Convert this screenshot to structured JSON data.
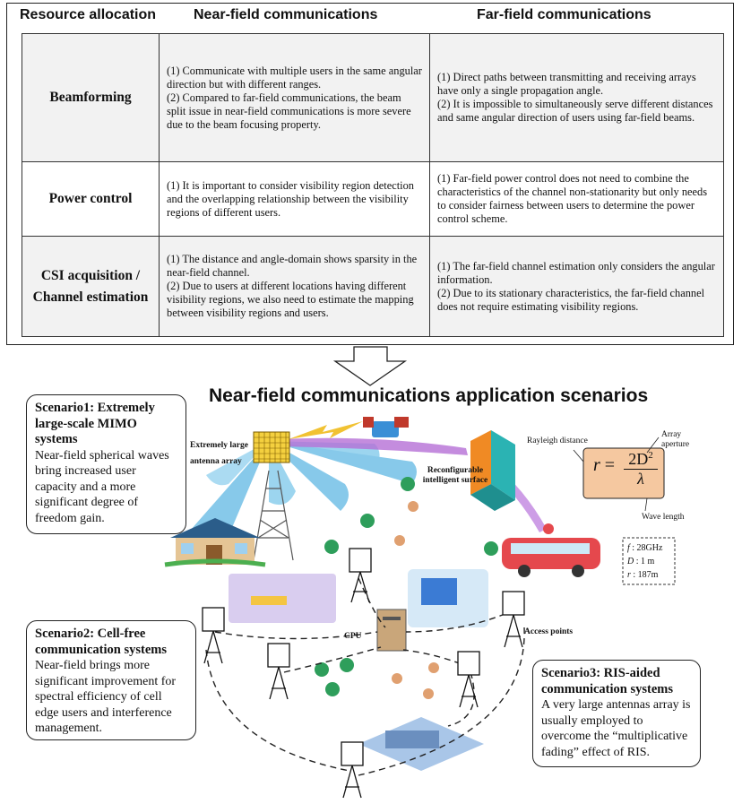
{
  "table": {
    "headers": [
      "Resource allocation",
      "Near-field communications",
      "Far-field communications"
    ],
    "rows": [
      {
        "label": "Beamforming",
        "near": "(1) Communicate with multiple users in the same angular direction but with different ranges.\n(2) Compared to far-field communications, the beam split issue in near-field communications is more severe due to the beam focusing property.",
        "far": "(1) Direct paths between transmitting and receiving arrays have only a single propagation angle.\n(2) It is impossible to simultaneously serve different distances and same angular direction of users using far-field beams."
      },
      {
        "label": "Power control",
        "near": "(1) It is important to consider visibility region detection and the overlapping relationship between the visibility regions of different users.",
        "far": "(1) Far-field power control does not need to combine the characteristics of the channel non-stationarity but only needs to consider fairness between users to determine the power control scheme."
      },
      {
        "label": "CSI acquisition / Channel estimation",
        "near": "(1) The distance and angle-domain shows sparsity in the near-field channel.\n(2) Due to users at different locations having different visibility regions, we also need to estimate the mapping between visibility regions and users.",
        "far": "(1) The far-field channel estimation only considers the angular information.\n(2) Due to its stationary characteristics, the far-field channel does not require estimating visibility regions."
      }
    ]
  },
  "diagram": {
    "title": "Near-field communications application scenarios",
    "labels": {
      "antenna_array": "Extremely large antenna array",
      "ris": "Reconfigurable intelligent surface",
      "cpu": "CPU",
      "access_points": "Access points",
      "rayleigh_distance": "Rayleigh distance",
      "array_aperture": "Array aperture",
      "wave_length": "Wave length"
    },
    "formula": {
      "lhs": "r",
      "eq": "=",
      "num": "2D",
      "exp": "2",
      "den": "λ"
    },
    "params": [
      {
        "sym": "f",
        "value": ": 28GHz"
      },
      {
        "sym": "D",
        "value": ": 1 m"
      },
      {
        "sym": "r",
        "value": ": 187m"
      }
    ],
    "scenarios": [
      {
        "title": "Scenario1: Extremely large-scale MIMO systems",
        "text": "Near-field spherical waves bring increased user capacity and a more significant degree of freedom gain."
      },
      {
        "title": "Scenario2: Cell-free communication systems",
        "text": "Near-field brings more significant improvement for spectral efficiency of cell edge users and interference management."
      },
      {
        "title": "Scenario3: RIS-aided communication systems",
        "text": "A very large antennas array is usually employed to overcome the “multiplicative fading” effect of RIS."
      }
    ],
    "colors": {
      "beam": "#5fb8e3",
      "phone": "#2e9e5b",
      "formula_bg": "#f5c8a0",
      "ris": "#2bb3b3",
      "beam_purple": "#b56fd6"
    }
  }
}
